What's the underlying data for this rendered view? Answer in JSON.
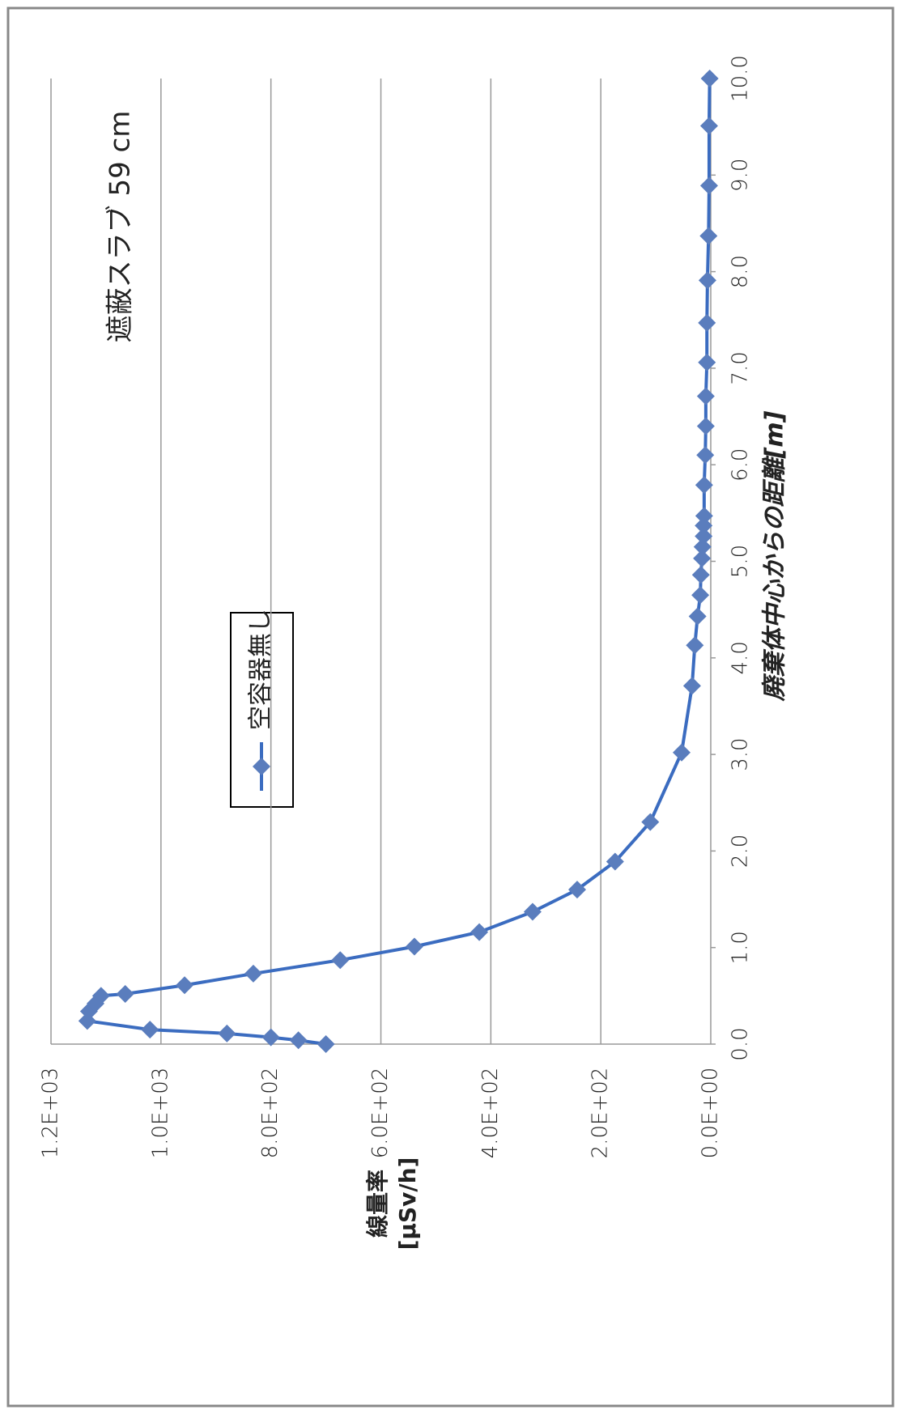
{
  "chart_data": {
    "type": "line",
    "title": "遮蔽スラブ 59 cm",
    "x_label": "廃棄体中心からの距離[m]",
    "y_label": [
      "線量率",
      "[µSv/h]"
    ],
    "x": [
      0,
      0.04,
      0.07,
      0.11,
      0.15,
      0.24,
      0.34,
      0.42,
      0.5,
      0.52,
      0.61,
      0.73,
      0.87,
      1.01,
      1.16,
      1.37,
      1.6,
      1.89,
      2.3,
      3.02,
      3.71,
      4.13,
      4.43,
      4.65,
      4.86,
      5.03,
      5.15,
      5.26,
      5.37,
      5.47,
      5.79,
      6.1,
      6.4,
      6.71,
      7.06,
      7.47,
      7.91,
      8.37,
      8.89,
      9.51,
      10.0
    ],
    "series": [
      {
        "name": "空容器無し",
        "color": "#3b6cc0",
        "marker_color": "#5a7dbd",
        "values": [
          700,
          750,
          800,
          880,
          1020,
          1134,
          1131,
          1119,
          1109,
          1065,
          957,
          832,
          674,
          539,
          421,
          324,
          243,
          174,
          110,
          53,
          34,
          29,
          24,
          19,
          18,
          16,
          15,
          13,
          13,
          12,
          12,
          10,
          9,
          9,
          7,
          7,
          6,
          4,
          3,
          3,
          2
        ]
      }
    ],
    "xlim": [
      0,
      10
    ],
    "xticks": [
      {
        "value": 0,
        "label": "0.0"
      },
      {
        "value": 1,
        "label": "1.0"
      },
      {
        "value": 2,
        "label": "2.0"
      },
      {
        "value": 3,
        "label": "3.0"
      },
      {
        "value": 4,
        "label": "4.0"
      },
      {
        "value": 5,
        "label": "5.0"
      },
      {
        "value": 6,
        "label": "6.0"
      },
      {
        "value": 7,
        "label": "7.0"
      },
      {
        "value": 8,
        "label": "8.0"
      },
      {
        "value": 9,
        "label": "9.0"
      },
      {
        "value": 10,
        "label": "10.0"
      }
    ],
    "ylim": [
      0,
      1200
    ],
    "yticks": [
      {
        "value": 0,
        "label": "0.0E+00"
      },
      {
        "value": 200,
        "label": "2.0E+02"
      },
      {
        "value": 400,
        "label": "4.0E+02"
      },
      {
        "value": 600,
        "label": "6.0E+02"
      },
      {
        "value": 800,
        "label": "8.0E+02"
      },
      {
        "value": 1000,
        "label": "1.0E+03"
      },
      {
        "value": 1200,
        "label": "1.2E+03"
      }
    ],
    "grid": true
  }
}
